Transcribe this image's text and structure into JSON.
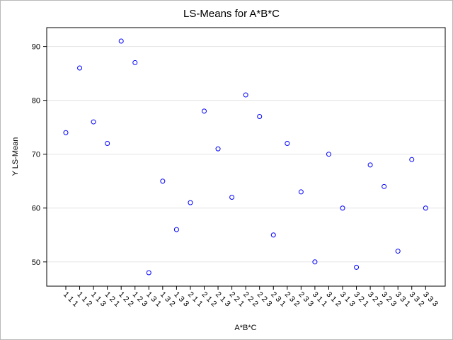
{
  "chart_data": {
    "type": "scatter",
    "title": "LS-Means for A*B*C",
    "xlabel": "A*B*C",
    "ylabel": "Y LS-Mean",
    "ylim": [
      45.5,
      93.5
    ],
    "yticks": [
      50,
      60,
      70,
      80,
      90
    ],
    "grid": "horizontal",
    "marker": "open-circle",
    "marker_color": "#0000ff",
    "categories": [
      "1 1 1",
      "1 1 2",
      "1 1 3",
      "1 2 1",
      "1 2 2",
      "1 2 3",
      "1 3 1",
      "1 3 2",
      "1 3 3",
      "2 1 1",
      "2 1 2",
      "2 1 3",
      "2 2 1",
      "2 2 2",
      "2 2 3",
      "2 3 1",
      "2 3 2",
      "2 3 3",
      "3 1 1",
      "3 1 2",
      "3 1 3",
      "3 2 1",
      "3 2 2",
      "3 2 3",
      "3 3 1",
      "3 3 2",
      "3 3 3"
    ],
    "series": [
      {
        "values": [
          74,
          86,
          76,
          72,
          91,
          87,
          48,
          65,
          56,
          61,
          78,
          71,
          62,
          81,
          77,
          55,
          72,
          63,
          50,
          70,
          60,
          49,
          68,
          64,
          52,
          69,
          60
        ]
      }
    ]
  }
}
